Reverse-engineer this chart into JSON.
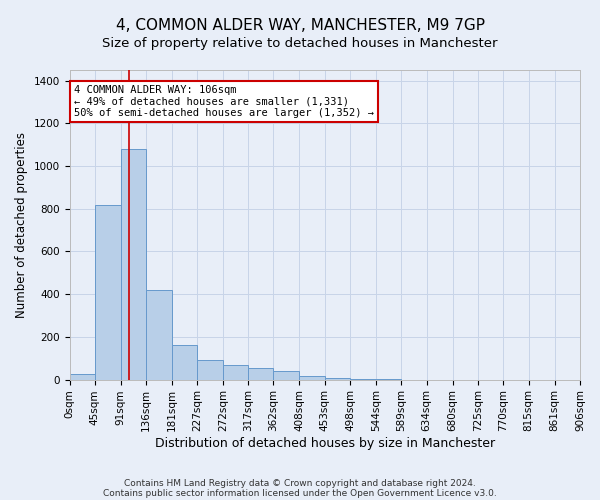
{
  "title": "4, COMMON ALDER WAY, MANCHESTER, M9 7GP",
  "subtitle": "Size of property relative to detached houses in Manchester",
  "xlabel": "Distribution of detached houses by size in Manchester",
  "ylabel": "Number of detached properties",
  "bin_edges": [
    0,
    45,
    91,
    136,
    181,
    227,
    272,
    317,
    362,
    408,
    453,
    498,
    544,
    589,
    634,
    680,
    725,
    770,
    815,
    861,
    906
  ],
  "bin_labels": [
    "0sqm",
    "45sqm",
    "91sqm",
    "136sqm",
    "181sqm",
    "227sqm",
    "272sqm",
    "317sqm",
    "362sqm",
    "408sqm",
    "453sqm",
    "498sqm",
    "544sqm",
    "589sqm",
    "634sqm",
    "680sqm",
    "725sqm",
    "770sqm",
    "815sqm",
    "861sqm",
    "906sqm"
  ],
  "bar_heights": [
    28,
    820,
    1080,
    420,
    160,
    90,
    70,
    55,
    38,
    18,
    8,
    4,
    3,
    0,
    0,
    0,
    0,
    0,
    0,
    0
  ],
  "bar_color": "#b8cfe8",
  "bar_edge_color": "#6699cc",
  "grid_color": "#c8d4e8",
  "background_color": "#e8eef8",
  "property_size": 106,
  "vline_color": "#cc0000",
  "annotation_line1": "4 COMMON ALDER WAY: 106sqm",
  "annotation_line2": "← 49% of detached houses are smaller (1,331)",
  "annotation_line3": "50% of semi-detached houses are larger (1,352) →",
  "annotation_box_color": "#cc0000",
  "annotation_bg": "#ffffff",
  "ylim": [
    0,
    1450
  ],
  "yticks": [
    0,
    200,
    400,
    600,
    800,
    1000,
    1200,
    1400
  ],
  "footer_line1": "Contains HM Land Registry data © Crown copyright and database right 2024.",
  "footer_line2": "Contains public sector information licensed under the Open Government Licence v3.0.",
  "title_fontsize": 11,
  "subtitle_fontsize": 9.5,
  "xlabel_fontsize": 9,
  "ylabel_fontsize": 8.5,
  "tick_fontsize": 7.5,
  "annotation_fontsize": 7.5,
  "footer_fontsize": 6.5
}
